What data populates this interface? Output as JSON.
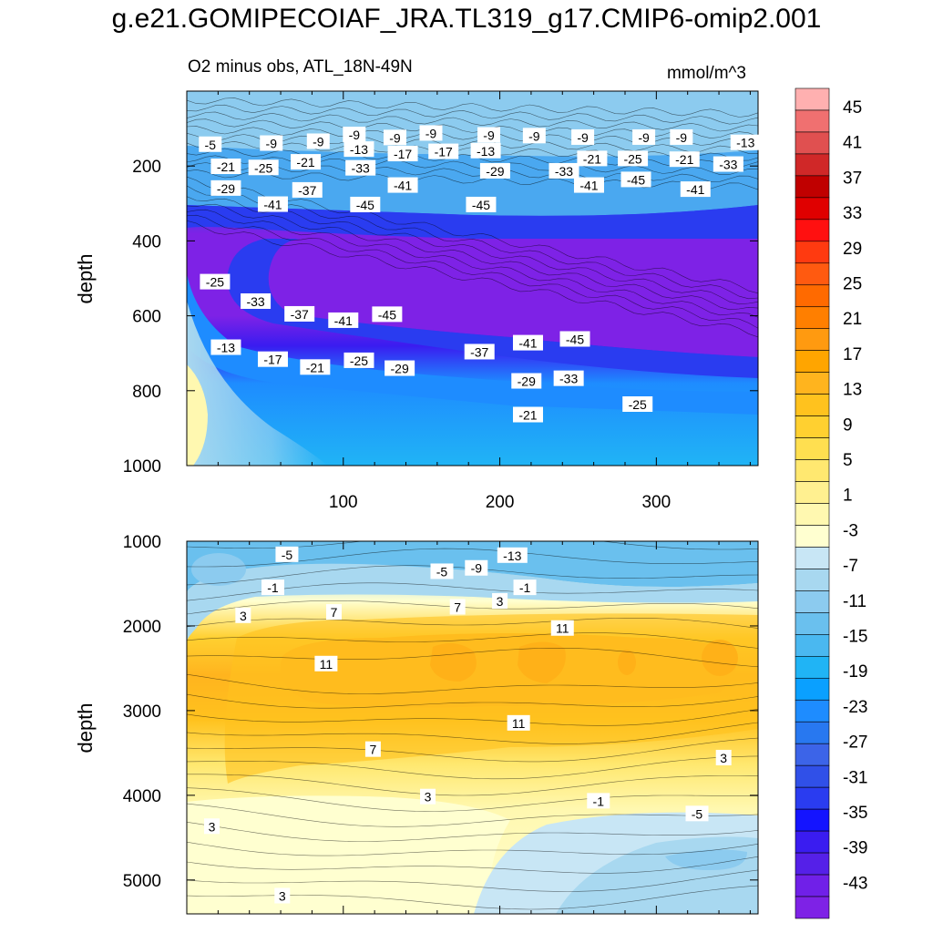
{
  "title": "g.e21.GOMIPECOIAF_JRA.TL319_g17.CMIP6-omip2.001",
  "subtitle": "O2 minus obs, ATL_18N-49N",
  "units": "mmol/m^3",
  "chart_data": [
    {
      "type": "heatmap",
      "panel": "upper",
      "title": "O2 minus obs, ATL_18N-49N",
      "ylabel": "depth",
      "xlabel": "",
      "xlim": [
        0,
        365
      ],
      "ylim": [
        1000,
        0
      ],
      "x_ticks": [
        100,
        200,
        300
      ],
      "y_ticks": [
        200,
        400,
        600,
        800,
        1000
      ],
      "contour_labels": [
        {
          "text": "-5",
          "x": 15,
          "y": 143
        },
        {
          "text": "-9",
          "x": 54,
          "y": 140
        },
        {
          "text": "-9",
          "x": 84,
          "y": 135
        },
        {
          "text": "-9",
          "x": 107,
          "y": 117
        },
        {
          "text": "-9",
          "x": 133,
          "y": 125
        },
        {
          "text": "-9",
          "x": 156,
          "y": 113
        },
        {
          "text": "-9",
          "x": 193,
          "y": 118
        },
        {
          "text": "-9",
          "x": 222,
          "y": 120
        },
        {
          "text": "-9",
          "x": 253,
          "y": 124
        },
        {
          "text": "-9",
          "x": 292,
          "y": 124
        },
        {
          "text": "-9",
          "x": 316,
          "y": 124
        },
        {
          "text": "-13",
          "x": 110,
          "y": 156
        },
        {
          "text": "-17",
          "x": 138,
          "y": 168
        },
        {
          "text": "-17",
          "x": 164,
          "y": 162
        },
        {
          "text": "-13",
          "x": 191,
          "y": 160
        },
        {
          "text": "-13",
          "x": 357,
          "y": 138
        },
        {
          "text": "-21",
          "x": 25,
          "y": 202
        },
        {
          "text": "-25",
          "x": 49,
          "y": 205
        },
        {
          "text": "-21",
          "x": 76,
          "y": 190
        },
        {
          "text": "-33",
          "x": 111,
          "y": 206
        },
        {
          "text": "-29",
          "x": 197,
          "y": 214
        },
        {
          "text": "-33",
          "x": 241,
          "y": 214
        },
        {
          "text": "-21",
          "x": 259,
          "y": 181
        },
        {
          "text": "-25",
          "x": 285,
          "y": 181
        },
        {
          "text": "-21",
          "x": 318,
          "y": 183
        },
        {
          "text": "-33",
          "x": 346,
          "y": 196
        },
        {
          "text": "-29",
          "x": 25,
          "y": 260
        },
        {
          "text": "-41",
          "x": 55,
          "y": 303
        },
        {
          "text": "-37",
          "x": 77,
          "y": 265
        },
        {
          "text": "-45",
          "x": 114,
          "y": 304
        },
        {
          "text": "-41",
          "x": 138,
          "y": 252
        },
        {
          "text": "-45",
          "x": 188,
          "y": 304
        },
        {
          "text": "-41",
          "x": 257,
          "y": 252
        },
        {
          "text": "-45",
          "x": 287,
          "y": 237
        },
        {
          "text": "-41",
          "x": 325,
          "y": 263
        },
        {
          "text": "-25",
          "x": 18,
          "y": 510
        },
        {
          "text": "-33",
          "x": 44,
          "y": 562
        },
        {
          "text": "-37",
          "x": 72,
          "y": 596
        },
        {
          "text": "-41",
          "x": 100,
          "y": 613
        },
        {
          "text": "-45",
          "x": 128,
          "y": 597
        },
        {
          "text": "-37",
          "x": 187,
          "y": 697
        },
        {
          "text": "-41",
          "x": 218,
          "y": 673
        },
        {
          "text": "-45",
          "x": 248,
          "y": 663
        },
        {
          "text": "-13",
          "x": 25,
          "y": 685
        },
        {
          "text": "-17",
          "x": 55,
          "y": 717
        },
        {
          "text": "-21",
          "x": 82,
          "y": 738
        },
        {
          "text": "-25",
          "x": 110,
          "y": 720
        },
        {
          "text": "-29",
          "x": 136,
          "y": 741
        },
        {
          "text": "-29",
          "x": 217,
          "y": 775
        },
        {
          "text": "-33",
          "x": 244,
          "y": 768
        },
        {
          "text": "-21",
          "x": 218,
          "y": 865
        },
        {
          "text": "-25",
          "x": 288,
          "y": 837
        }
      ]
    },
    {
      "type": "heatmap",
      "panel": "lower",
      "ylabel": "depth",
      "xlabel": "",
      "xlim": [
        0,
        365
      ],
      "ylim": [
        5400,
        1000
      ],
      "x_ticks": [],
      "y_ticks": [
        1000,
        2000,
        3000,
        4000,
        5000
      ],
      "contour_labels": [
        {
          "text": "-5",
          "x": 64,
          "y": 1160
        },
        {
          "text": "-13",
          "x": 208,
          "y": 1170
        },
        {
          "text": "-9",
          "x": 185,
          "y": 1320
        },
        {
          "text": "-5",
          "x": 163,
          "y": 1360
        },
        {
          "text": "-1",
          "x": 55,
          "y": 1550
        },
        {
          "text": "-1",
          "x": 216,
          "y": 1550
        },
        {
          "text": "3",
          "x": 36,
          "y": 1880
        },
        {
          "text": "7",
          "x": 94,
          "y": 1840
        },
        {
          "text": "7",
          "x": 173,
          "y": 1780
        },
        {
          "text": "3",
          "x": 200,
          "y": 1710
        },
        {
          "text": "11",
          "x": 240,
          "y": 2030
        },
        {
          "text": "11",
          "x": 89,
          "y": 2450
        },
        {
          "text": "11",
          "x": 212,
          "y": 3150
        },
        {
          "text": "7",
          "x": 119,
          "y": 3460
        },
        {
          "text": "3",
          "x": 343,
          "y": 3560
        },
        {
          "text": "3",
          "x": 154,
          "y": 4020
        },
        {
          "text": "-1",
          "x": 263,
          "y": 4070
        },
        {
          "text": "-5",
          "x": 326,
          "y": 4220
        },
        {
          "text": "3",
          "x": 16,
          "y": 4370
        },
        {
          "text": "3",
          "x": 61,
          "y": 5190
        }
      ]
    },
    {
      "type": "colorbar",
      "tick_labels": [
        "45",
        "41",
        "37",
        "33",
        "29",
        "25",
        "21",
        "17",
        "13",
        "9",
        "5",
        "1",
        "-3",
        "-7",
        "-11",
        "-15",
        "-19",
        "-23",
        "-27",
        "-31",
        "-35",
        "-39",
        "-43"
      ],
      "colors_top_to_bottom": [
        "#ffb0b0",
        "#f07070",
        "#e05050",
        "#d02828",
        "#c00000",
        "#e00000",
        "#ff1010",
        "#ff3a10",
        "#ff5a10",
        "#ff6a00",
        "#ff7f00",
        "#ff9a10",
        "#ffa500",
        "#ffb41e",
        "#ffc21e",
        "#ffd030",
        "#ffdf50",
        "#ffe870",
        "#fff090",
        "#fff8b0",
        "#ffffd0",
        "#c8e6f5",
        "#a8d8f0",
        "#8ccbef",
        "#6ac0ee",
        "#4ab8f0",
        "#20b4f5",
        "#0aa0ff",
        "#1e8cff",
        "#2878f0",
        "#3c64e8",
        "#3050e8",
        "#2a3cf0",
        "#1414ff",
        "#3a1cf0",
        "#5520e8",
        "#7020e8",
        "#7e22e6"
      ]
    }
  ]
}
